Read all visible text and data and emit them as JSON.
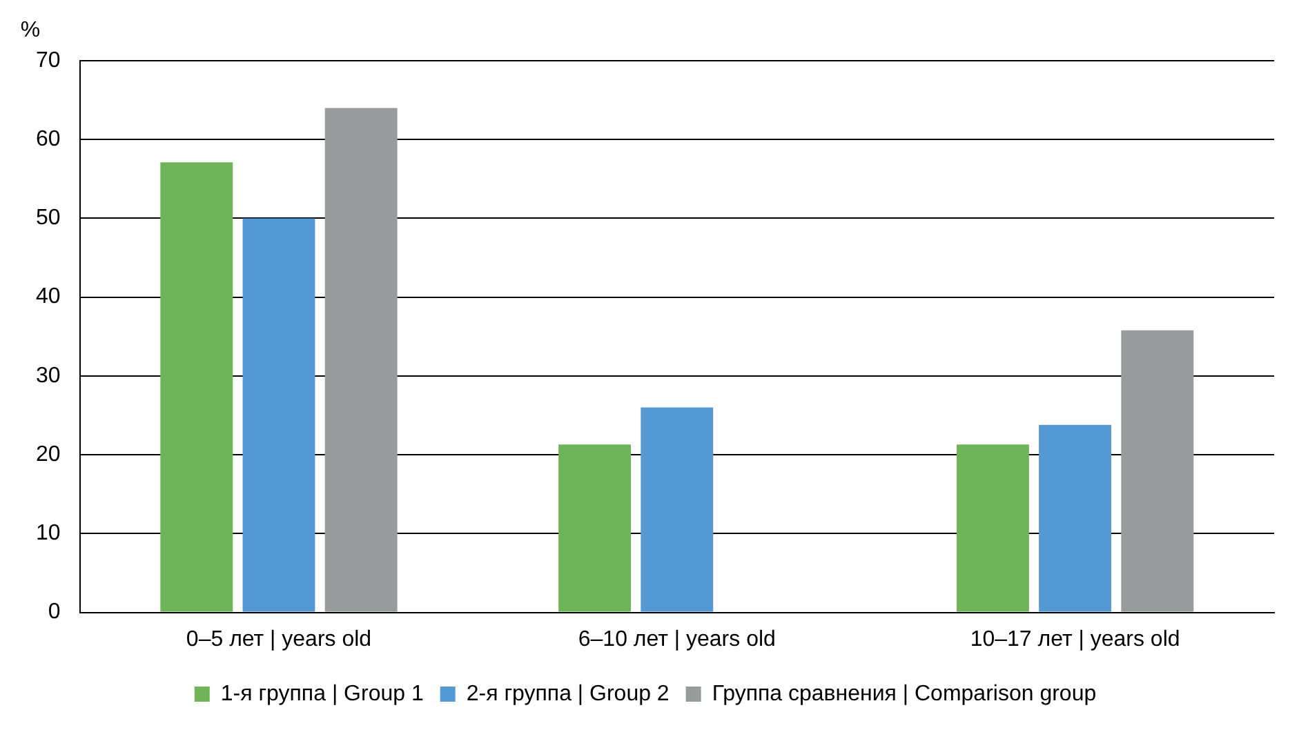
{
  "chart_data": {
    "type": "bar",
    "ylabel": "%",
    "categories": [
      "0–5 лет | years old",
      "6–10 лет | years old",
      "10–17 лет | years old"
    ],
    "series": [
      {
        "name": "1-я группа | Group 1",
        "color": "#70b45a",
        "values": [
          57.1,
          21.3,
          21.3
        ]
      },
      {
        "name": "2-я группа | Group 2",
        "color": "#5499d4",
        "values": [
          50,
          26,
          23.8
        ]
      },
      {
        "name": "Группа сравнения | Comparison group",
        "color": "#999c9c",
        "values": [
          64,
          null,
          35.8
        ]
      }
    ],
    "ylim": [
      0,
      70
    ],
    "yticks": [
      0,
      10,
      20,
      30,
      40,
      50,
      60,
      70
    ],
    "grid": "y",
    "legend": "bottom"
  }
}
